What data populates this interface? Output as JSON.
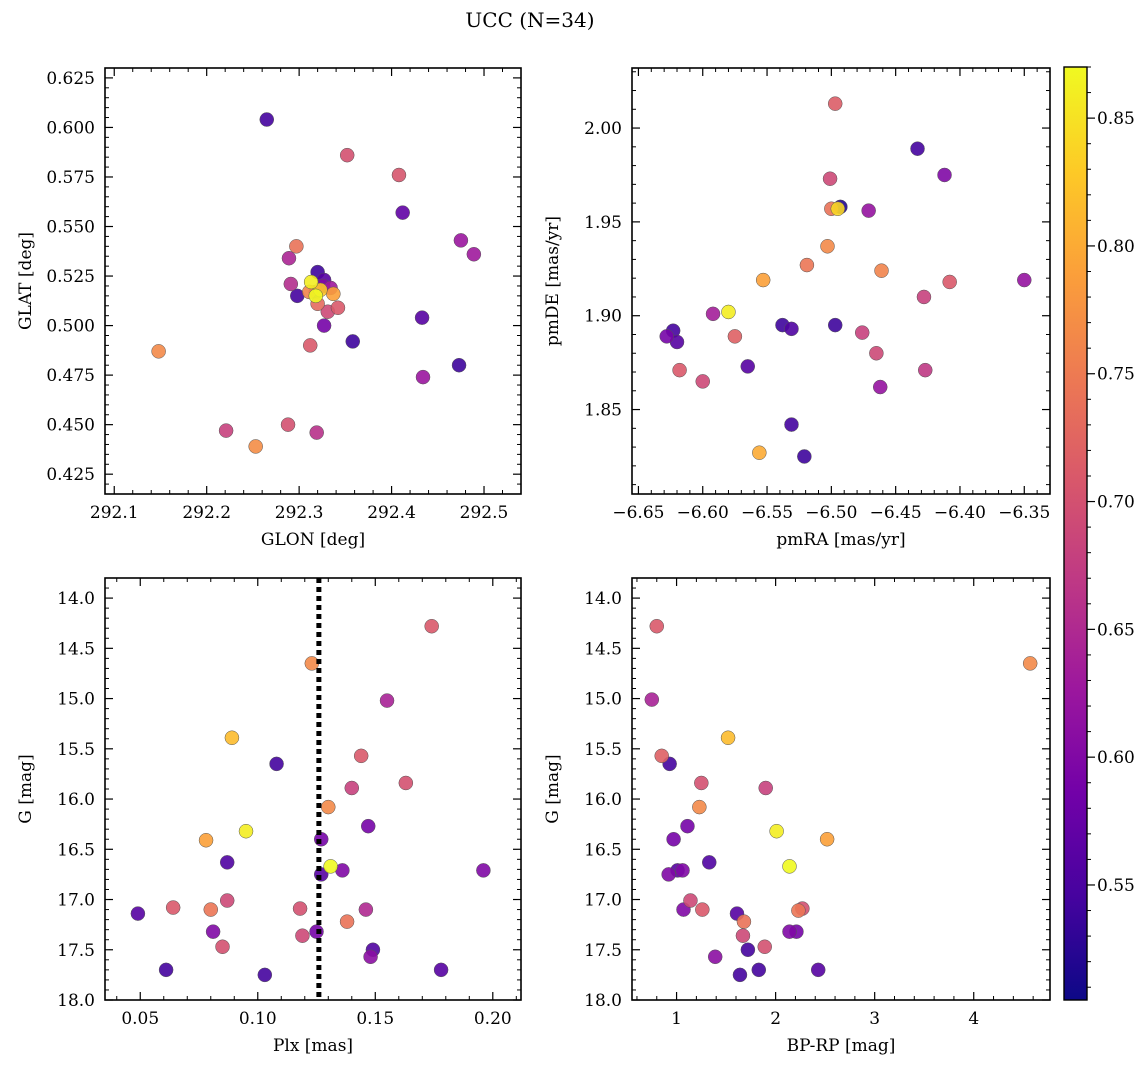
{
  "figure": {
    "title": "UCC (N=34)"
  },
  "colormap": {
    "name": "plasma",
    "range": [
      0.505,
      0.87
    ],
    "ticks": [
      0.55,
      0.6,
      0.65,
      0.7,
      0.75,
      0.8,
      0.85
    ],
    "tick_labels": [
      "0.55",
      "0.60",
      "0.65",
      "0.70",
      "0.75",
      "0.80",
      "0.85"
    ],
    "stops": [
      "#0d0887",
      "#46039f",
      "#7201a8",
      "#9c179e",
      "#bd3786",
      "#d8576b",
      "#ed7953",
      "#fb9f3a",
      "#fdca26",
      "#f0f921"
    ]
  },
  "chart_data": [
    {
      "type": "scatter",
      "id": "glon-glat",
      "title": "",
      "xlabel": "GLON [deg]",
      "ylabel": "GLAT [deg]",
      "xlim": [
        292.09,
        292.54
      ],
      "ylim": [
        0.415,
        0.63
      ],
      "x_ticks": [
        292.1,
        292.2,
        292.3,
        292.4,
        292.5
      ],
      "x_tick_labels": [
        "292.1",
        "292.2",
        "292.3",
        "292.4",
        "292.5"
      ],
      "y_ticks": [
        0.425,
        0.45,
        0.475,
        0.5,
        0.525,
        0.55,
        0.575,
        0.6,
        0.625
      ],
      "y_tick_labels": [
        "0.425",
        "0.450",
        "0.475",
        "0.500",
        "0.525",
        "0.550",
        "0.575",
        "0.600",
        "0.625"
      ],
      "x": [
        292.265,
        292.352,
        292.408,
        292.412,
        292.475,
        292.489,
        292.297,
        292.289,
        292.32,
        292.327,
        292.291,
        292.298,
        292.334,
        292.311,
        292.337,
        292.323,
        292.313,
        292.318,
        292.32,
        292.342,
        292.331,
        292.327,
        292.312,
        292.358,
        292.433,
        292.148,
        292.473,
        292.434,
        292.221,
        292.288,
        292.319,
        292.253,
        292.318,
        292.326
      ],
      "y": [
        0.604,
        0.586,
        0.576,
        0.557,
        0.543,
        0.536,
        0.54,
        0.534,
        0.527,
        0.523,
        0.521,
        0.515,
        0.519,
        0.517,
        0.516,
        0.518,
        0.522,
        0.515,
        0.511,
        0.509,
        0.507,
        0.5,
        0.49,
        0.492,
        0.504,
        0.487,
        0.48,
        0.474,
        0.447,
        0.45,
        0.446,
        0.439,
        0.517,
        0.52
      ],
      "c": [
        0.545,
        0.7,
        0.705,
        0.57,
        0.625,
        0.63,
        0.74,
        0.645,
        0.54,
        0.56,
        0.655,
        0.545,
        0.63,
        0.76,
        0.79,
        0.825,
        0.86,
        0.87,
        0.73,
        0.71,
        0.69,
        0.59,
        0.71,
        0.54,
        0.56,
        0.765,
        0.54,
        0.625,
        0.68,
        0.7,
        0.66,
        0.77,
        0.65,
        0.6
      ]
    },
    {
      "type": "scatter",
      "id": "pmra-pmde",
      "title": "",
      "xlabel": "pmRA [mas/yr]",
      "ylabel": "pmDE [mas/yr]",
      "xlim": [
        -6.655,
        -6.33
      ],
      "ylim": [
        1.805,
        2.032
      ],
      "x_ticks": [
        -6.65,
        -6.6,
        -6.55,
        -6.5,
        -6.45,
        -6.4,
        -6.35
      ],
      "x_tick_labels": [
        "−6.65",
        "−6.60",
        "−6.55",
        "−6.50",
        "−6.45",
        "−6.40",
        "−6.35"
      ],
      "y_ticks": [
        1.85,
        1.9,
        1.95,
        2.0
      ],
      "y_tick_labels": [
        "1.85",
        "1.90",
        "1.95",
        "2.00"
      ],
      "x": [
        -6.497,
        -6.433,
        -6.412,
        -6.501,
        -6.493,
        -6.5,
        -6.471,
        -6.503,
        -6.519,
        -6.461,
        -6.553,
        -6.408,
        -6.35,
        -6.428,
        -6.58,
        -6.592,
        -6.628,
        -6.623,
        -6.62,
        -6.575,
        -6.538,
        -6.531,
        -6.497,
        -6.476,
        -6.465,
        -6.618,
        -6.6,
        -6.565,
        -6.427,
        -6.462,
        -6.531,
        -6.521,
        -6.556,
        -6.495
      ],
      "y": [
        2.013,
        1.989,
        1.975,
        1.973,
        1.958,
        1.957,
        1.956,
        1.937,
        1.927,
        1.924,
        1.919,
        1.918,
        1.919,
        1.91,
        1.902,
        1.901,
        1.889,
        1.892,
        1.886,
        1.889,
        1.895,
        1.893,
        1.895,
        1.891,
        1.88,
        1.871,
        1.865,
        1.873,
        1.871,
        1.862,
        1.842,
        1.825,
        1.827,
        1.957
      ],
      "c": [
        0.715,
        0.545,
        0.6,
        0.69,
        0.52,
        0.74,
        0.62,
        0.765,
        0.745,
        0.76,
        0.79,
        0.71,
        0.62,
        0.68,
        0.86,
        0.635,
        0.59,
        0.545,
        0.56,
        0.72,
        0.54,
        0.555,
        0.54,
        0.68,
        0.69,
        0.71,
        0.69,
        0.56,
        0.67,
        0.62,
        0.545,
        0.54,
        0.8,
        0.84
      ]
    },
    {
      "type": "scatter",
      "id": "plx-g",
      "title": "",
      "xlabel": "Plx [mas]",
      "ylabel": "G [mag]",
      "xlim": [
        0.035,
        0.212
      ],
      "ylim": [
        18.0,
        13.8
      ],
      "y_inverted": true,
      "x_ticks": [
        0.05,
        0.1,
        0.15,
        0.2
      ],
      "x_tick_labels": [
        "0.05",
        "0.10",
        "0.15",
        "0.20"
      ],
      "y_ticks": [
        14.0,
        14.5,
        15.0,
        15.5,
        16.0,
        16.5,
        17.0,
        17.5,
        18.0
      ],
      "y_tick_labels": [
        "14.0",
        "14.5",
        "15.0",
        "15.5",
        "16.0",
        "16.5",
        "17.0",
        "17.5",
        "18.0"
      ],
      "vline_x": 0.126,
      "x": [
        0.174,
        0.123,
        0.155,
        0.089,
        0.108,
        0.144,
        0.163,
        0.14,
        0.13,
        0.095,
        0.147,
        0.078,
        0.127,
        0.087,
        0.131,
        0.136,
        0.127,
        0.196,
        0.087,
        0.064,
        0.08,
        0.118,
        0.146,
        0.049,
        0.138,
        0.081,
        0.119,
        0.125,
        0.085,
        0.149,
        0.148,
        0.061,
        0.103,
        0.178
      ],
      "y": [
        14.28,
        14.65,
        15.02,
        15.39,
        15.65,
        15.57,
        15.84,
        15.89,
        16.08,
        16.32,
        16.27,
        16.41,
        16.4,
        16.63,
        16.67,
        16.71,
        16.75,
        16.71,
        17.01,
        17.08,
        17.1,
        17.09,
        17.1,
        17.14,
        17.22,
        17.32,
        17.36,
        17.32,
        17.47,
        17.5,
        17.57,
        17.7,
        17.75,
        17.7
      ],
      "c": [
        0.71,
        0.765,
        0.64,
        0.815,
        0.545,
        0.71,
        0.7,
        0.68,
        0.765,
        0.86,
        0.59,
        0.79,
        0.59,
        0.555,
        0.87,
        0.6,
        0.56,
        0.6,
        0.69,
        0.71,
        0.745,
        0.7,
        0.65,
        0.56,
        0.74,
        0.6,
        0.69,
        0.59,
        0.7,
        0.555,
        0.61,
        0.545,
        0.545,
        0.56
      ]
    },
    {
      "type": "scatter",
      "id": "bprp-g",
      "title": "",
      "xlabel": "BP-RP [mag]",
      "ylabel": "G [mag]",
      "xlim": [
        0.55,
        4.77
      ],
      "ylim": [
        18.0,
        13.8
      ],
      "y_inverted": true,
      "x_ticks": [
        1,
        2,
        3,
        4
      ],
      "x_tick_labels": [
        "1",
        "2",
        "3",
        "4"
      ],
      "y_ticks": [
        14.0,
        14.5,
        15.0,
        15.5,
        16.0,
        16.5,
        17.0,
        17.5,
        18.0
      ],
      "y_tick_labels": [
        "14.0",
        "14.5",
        "15.0",
        "15.5",
        "16.0",
        "16.5",
        "17.0",
        "17.5",
        "18.0"
      ],
      "x": [
        0.8,
        4.57,
        0.75,
        0.85,
        0.93,
        1.52,
        1.25,
        1.9,
        1.23,
        2.01,
        1.11,
        2.52,
        0.97,
        1.33,
        2.14,
        1.06,
        1.01,
        0.92,
        1.14,
        1.61,
        1.26,
        2.27,
        2.23,
        1.07,
        1.68,
        2.14,
        1.67,
        2.21,
        1.72,
        1.89,
        1.39,
        1.64,
        1.83,
        2.43
      ],
      "y": [
        14.28,
        14.65,
        15.01,
        15.57,
        15.65,
        15.39,
        15.84,
        15.89,
        16.08,
        16.32,
        16.27,
        16.4,
        16.4,
        16.63,
        16.67,
        16.71,
        16.71,
        16.75,
        17.01,
        17.14,
        17.1,
        17.09,
        17.11,
        17.1,
        17.22,
        17.32,
        17.36,
        17.32,
        17.5,
        17.47,
        17.57,
        17.75,
        17.7,
        17.7
      ],
      "c": [
        0.71,
        0.765,
        0.64,
        0.72,
        0.545,
        0.815,
        0.7,
        0.68,
        0.765,
        0.86,
        0.59,
        0.79,
        0.59,
        0.555,
        0.87,
        0.6,
        0.56,
        0.6,
        0.69,
        0.56,
        0.71,
        0.7,
        0.745,
        0.6,
        0.74,
        0.6,
        0.69,
        0.59,
        0.545,
        0.7,
        0.61,
        0.545,
        0.545,
        0.56
      ]
    }
  ]
}
